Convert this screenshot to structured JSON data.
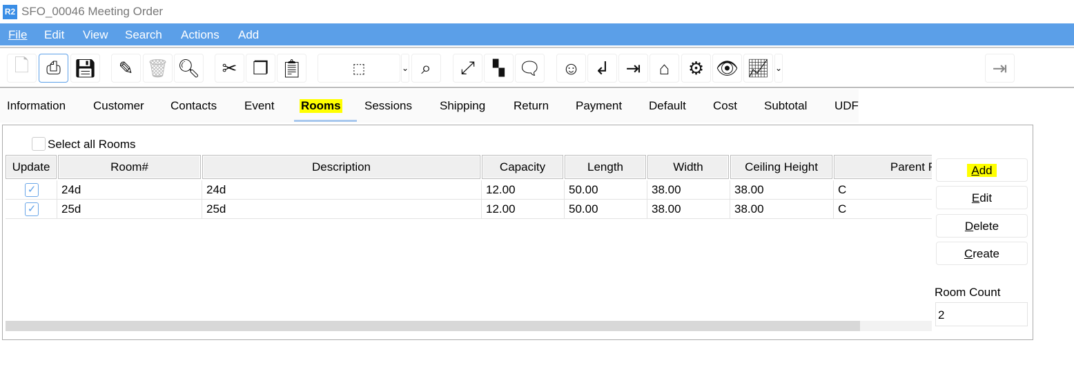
{
  "window": {
    "logo": "R2",
    "title": "SFO_00046 Meeting Order"
  },
  "menu": [
    "File",
    "Edit",
    "View",
    "Search",
    "Actions",
    "Add"
  ],
  "toolbar": {
    "icons": [
      "new-document-icon",
      "print-icon",
      "save-icon",
      "edit-pencil-icon",
      "delete-trash-icon",
      "search-icon",
      "cut-icon",
      "copy-icon",
      "paste-icon",
      "box-search-icon",
      "window-search-icon",
      "expand-icon",
      "grid-icon",
      "comment-icon",
      "smiley-icon",
      "return-icon",
      "import-box-icon",
      "building-icon",
      "document-settings-icon",
      "document-view-icon",
      "document-chart-icon",
      "exit-icon"
    ]
  },
  "tabs": [
    "Information",
    "Customer",
    "Contacts",
    "Event",
    "Rooms",
    "Sessions",
    "Shipping",
    "Return",
    "Payment",
    "Default",
    "Cost",
    "Subtotal",
    "UDF"
  ],
  "active_tab": "Rooms",
  "rooms": {
    "select_all_label": "Select all Rooms",
    "columns": [
      "Update",
      "Room#",
      "Description",
      "Capacity",
      "Length",
      "Width",
      "Ceiling Height",
      "Parent R"
    ],
    "rows": [
      {
        "update": true,
        "room": "24d",
        "description": "24d",
        "capacity": "12.00",
        "length": "50.00",
        "width": "38.00",
        "ceiling": "38.00",
        "parent": "C"
      },
      {
        "update": true,
        "room": "25d",
        "description": "25d",
        "capacity": "12.00",
        "length": "50.00",
        "width": "38.00",
        "ceiling": "38.00",
        "parent": "C"
      }
    ],
    "buttons": {
      "add_m": "A",
      "add_r": "dd",
      "edit_m": "E",
      "edit_r": "dit",
      "delete_m": "D",
      "delete_r": "elete",
      "create_m": "C",
      "create_r": "reate"
    },
    "room_count_label": "Room Count",
    "room_count": "2"
  },
  "colors": {
    "menubar": "#5b9fe8",
    "highlight": "#ffff00",
    "checkbox": "#5b9fe8"
  }
}
